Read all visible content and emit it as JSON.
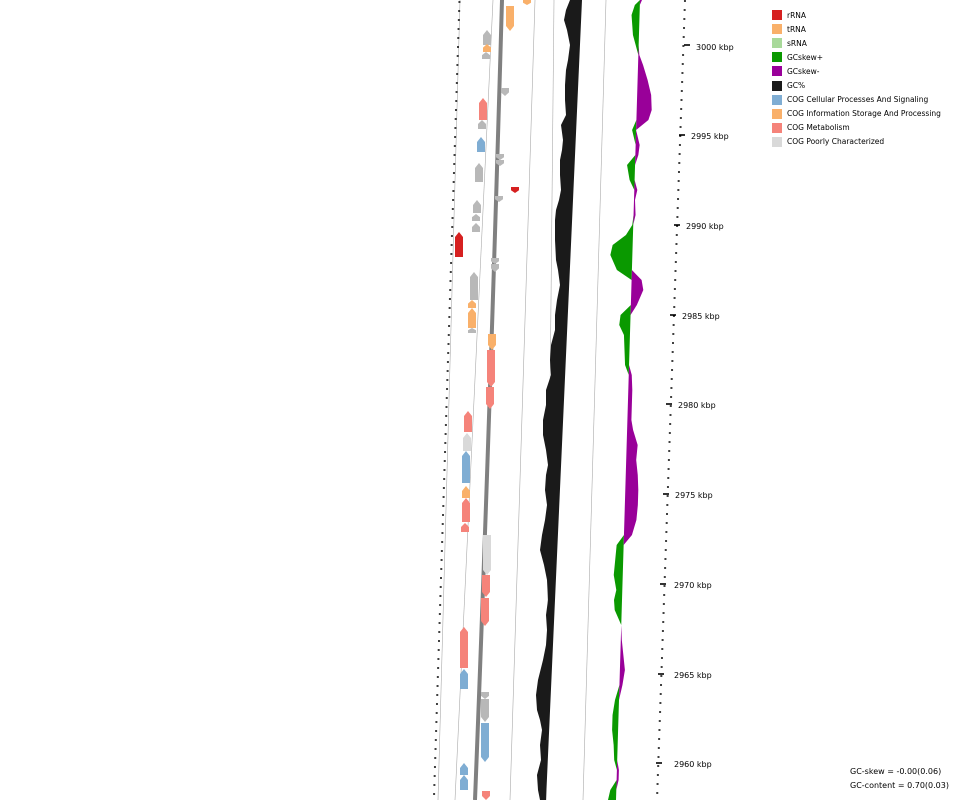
{
  "legend": [
    {
      "label": "rRNA",
      "color": "#d62020"
    },
    {
      "label": "tRNA",
      "color": "#f9b06a"
    },
    {
      "label": "sRNA",
      "color": "#a8d99a"
    },
    {
      "label": "GCskew+",
      "color": "#0a9900"
    },
    {
      "label": "GCskew-",
      "color": "#990099"
    },
    {
      "label": "GC%",
      "color": "#1a1a1a"
    },
    {
      "label": "COG Cellular Processes And Signaling",
      "color": "#7fadd3"
    },
    {
      "label": "COG Information Storage And Processing",
      "color": "#f9b06a"
    },
    {
      "label": "COG Metabolism",
      "color": "#f5837a"
    },
    {
      "label": "COG Poorly Characterized",
      "color": "#d9d9d9"
    }
  ],
  "ticks": [
    "3000 kbp",
    "2995 kbp",
    "2990 kbp",
    "2985 kbp",
    "2980 kbp",
    "2975 kbp",
    "2970 kbp",
    "2965 kbp",
    "2960 kbp"
  ],
  "stats": {
    "gc_skew": "GC-skew = -0.00(0.06)",
    "gc_content": "GC-content = 0.70(0.03)"
  },
  "colors": {
    "backbone": "#808080",
    "ring_line": "#aaaaaa",
    "gray_feature": "#b8b8b8"
  }
}
